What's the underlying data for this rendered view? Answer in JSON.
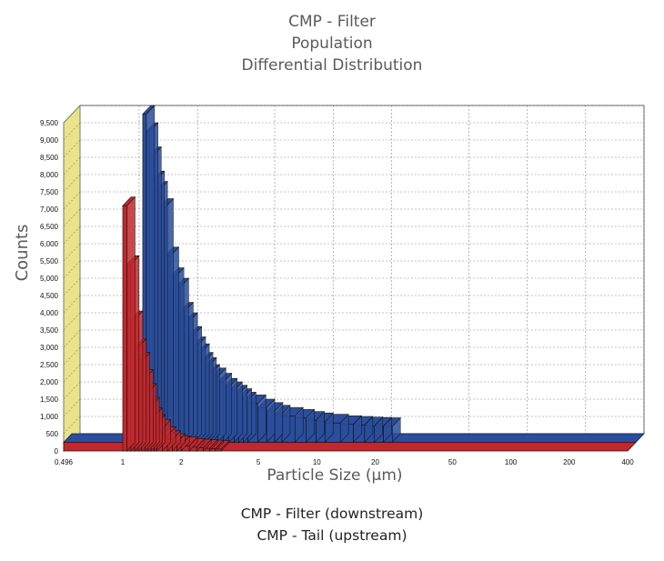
{
  "chart_data": {
    "type": "bar",
    "title_lines": [
      "CMP - Filter",
      "Population",
      "Differential Distribution"
    ],
    "xlabel": "Particle Size (µm)",
    "ylabel": "Counts",
    "x_scale": "log",
    "xlim": [
      0.496,
      400
    ],
    "ylim": [
      0,
      9500
    ],
    "y_ticks": [
      0,
      500,
      1000,
      1500,
      2000,
      2500,
      3000,
      3500,
      4000,
      4500,
      5000,
      5500,
      6000,
      6500,
      7000,
      7500,
      8000,
      8500,
      9000,
      9500
    ],
    "y_tick_labels": [
      "0",
      "500",
      "1,000",
      "1,500",
      "2,000",
      "2,500",
      "3,000",
      "3,500",
      "4,000",
      "4,500",
      "5,000",
      "5,500",
      "6,000",
      "6,500",
      "7,000",
      "7,500",
      "8,000",
      "8,500",
      "9,000",
      "9,500"
    ],
    "x_ticks": [
      0.496,
      1,
      2,
      5,
      10,
      20,
      50,
      100,
      200,
      400
    ],
    "x_tick_labels": [
      "0.496",
      "1",
      "2",
      "5",
      "10",
      "20",
      "50",
      "100",
      "200",
      "400"
    ],
    "grid": true,
    "style": "3d",
    "legend": [
      "CMP - Filter (downstream)",
      "CMP - Tail (upstream)"
    ],
    "series": [
      {
        "name": "CMP - Filter (downstream)",
        "color": "#2a4e9c",
        "x": [
          1.15,
          1.2,
          1.25,
          1.3,
          1.35,
          1.4,
          1.5,
          1.6,
          1.7,
          1.8,
          1.9,
          2.0,
          2.1,
          2.2,
          2.3,
          2.4,
          2.5,
          2.6,
          2.8,
          3.0,
          3.2,
          3.4,
          3.6,
          3.8,
          4.0,
          4.5,
          5.0,
          5.5,
          6.0,
          7.0,
          8.0,
          9.0,
          10,
          12,
          14,
          16,
          18,
          20
        ],
        "values": [
          9500,
          9000,
          8300,
          7600,
          7300,
          6800,
          5400,
          4800,
          4500,
          3800,
          3500,
          3100,
          2800,
          2600,
          2350,
          2200,
          2000,
          1900,
          1750,
          1600,
          1500,
          1400,
          1300,
          1200,
          1120,
          1000,
          900,
          820,
          760,
          700,
          640,
          600,
          560,
          520,
          500,
          480,
          470,
          460
        ]
      },
      {
        "name": "CMP - Tail (upstream)",
        "color": "#c0282d",
        "x": [
          1.0,
          1.05,
          1.1,
          1.15,
          1.2,
          1.25,
          1.3,
          1.35,
          1.4,
          1.45,
          1.5,
          1.6,
          1.7,
          1.8,
          1.9,
          2.0,
          2.2,
          2.4,
          2.6,
          2.8,
          3.0
        ],
        "values": [
          7100,
          5400,
          3800,
          3000,
          2600,
          2100,
          1700,
          1300,
          1000,
          800,
          650,
          450,
          330,
          250,
          190,
          150,
          110,
          90,
          75,
          65,
          55
        ]
      }
    ]
  }
}
